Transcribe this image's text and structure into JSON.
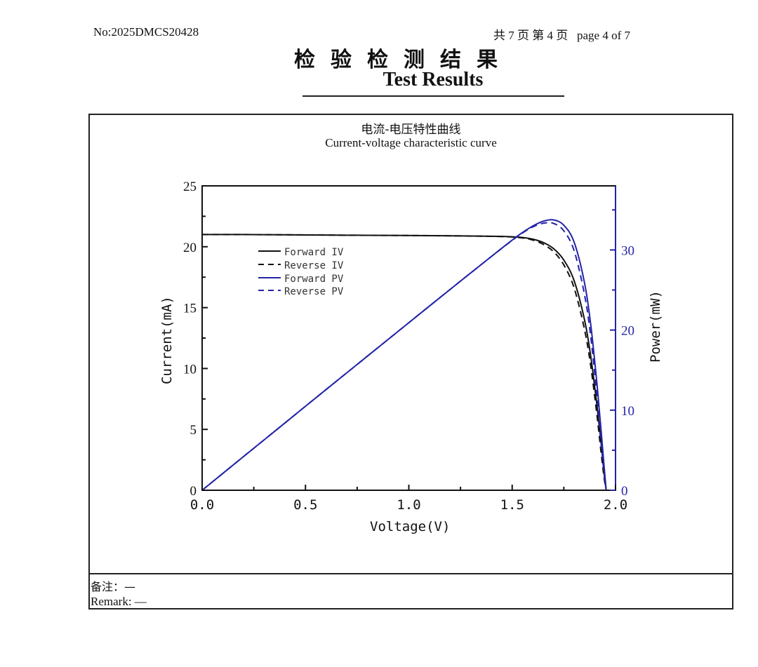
{
  "header": {
    "report_no": "No:2025DMCS20428",
    "page_info": "共 7 页 第 4 页   page 4 of 7",
    "title_cn": "检验检测结果",
    "title_en": "Test Results"
  },
  "chart_section": {
    "title_cn": "电流-电压特性曲线",
    "title_en": "Current-voltage characteristic curve"
  },
  "remarks": {
    "cn": "备注：—",
    "en": "Remark: —"
  },
  "colors": {
    "iv_line": "#111111",
    "pv_line": "#2323a8",
    "right_axis": "#2323a8",
    "text": "#111111"
  },
  "chart_data": {
    "type": "line",
    "title": "Current-voltage characteristic curve",
    "xlabel": "Voltage(V)",
    "ylabel": "Current(mA)",
    "y2label": "Power(mW)",
    "xlim": [
      0.0,
      2.0
    ],
    "ylim": [
      0,
      25
    ],
    "y2lim": [
      0,
      38
    ],
    "xticks": [
      "0.0",
      "0.5",
      "1.0",
      "1.5",
      "2.0"
    ],
    "yticks": [
      "0",
      "5",
      "10",
      "15",
      "20",
      "25"
    ],
    "y2ticks": [
      "0",
      "10",
      "20",
      "30"
    ],
    "grid": false,
    "legend_position": "upper-left-inside",
    "legend": [
      "Forward IV",
      "Reverse IV",
      "Forward PV",
      "Reverse PV"
    ],
    "x": [
      0.0,
      0.2,
      0.4,
      0.6,
      0.8,
      1.0,
      1.2,
      1.4,
      1.5,
      1.55,
      1.6,
      1.65,
      1.7,
      1.75,
      1.8,
      1.85,
      1.88,
      1.91,
      1.93,
      1.945,
      1.955
    ],
    "series": [
      {
        "name": "Forward IV",
        "axis": "left",
        "style": "solid",
        "values": [
          21.0,
          21.0,
          20.98,
          20.96,
          20.94,
          20.92,
          20.9,
          20.86,
          20.82,
          20.76,
          20.62,
          20.35,
          19.85,
          18.9,
          17.2,
          14.0,
          11.0,
          7.0,
          3.9,
          1.5,
          0.0
        ]
      },
      {
        "name": "Reverse IV",
        "axis": "left",
        "style": "dashed",
        "values": [
          21.0,
          21.0,
          20.98,
          20.96,
          20.94,
          20.92,
          20.9,
          20.85,
          20.8,
          20.72,
          20.55,
          20.2,
          19.6,
          18.5,
          16.6,
          13.2,
          10.2,
          6.2,
          3.1,
          1.0,
          0.0
        ]
      },
      {
        "name": "Forward PV",
        "axis": "right",
        "style": "solid",
        "values": [
          0.0,
          4.2,
          8.39,
          12.58,
          16.75,
          20.92,
          25.08,
          29.2,
          31.23,
          32.18,
          32.99,
          33.58,
          33.75,
          33.08,
          30.96,
          25.9,
          20.68,
          13.37,
          7.53,
          2.92,
          0.0
        ]
      },
      {
        "name": "Reverse PV",
        "axis": "right",
        "style": "dashed",
        "values": [
          0.0,
          4.2,
          8.39,
          12.58,
          16.75,
          20.92,
          25.08,
          29.19,
          31.2,
          32.12,
          32.88,
          33.33,
          33.32,
          32.38,
          29.88,
          24.42,
          19.18,
          11.84,
          5.98,
          1.95,
          0.0
        ]
      }
    ]
  }
}
